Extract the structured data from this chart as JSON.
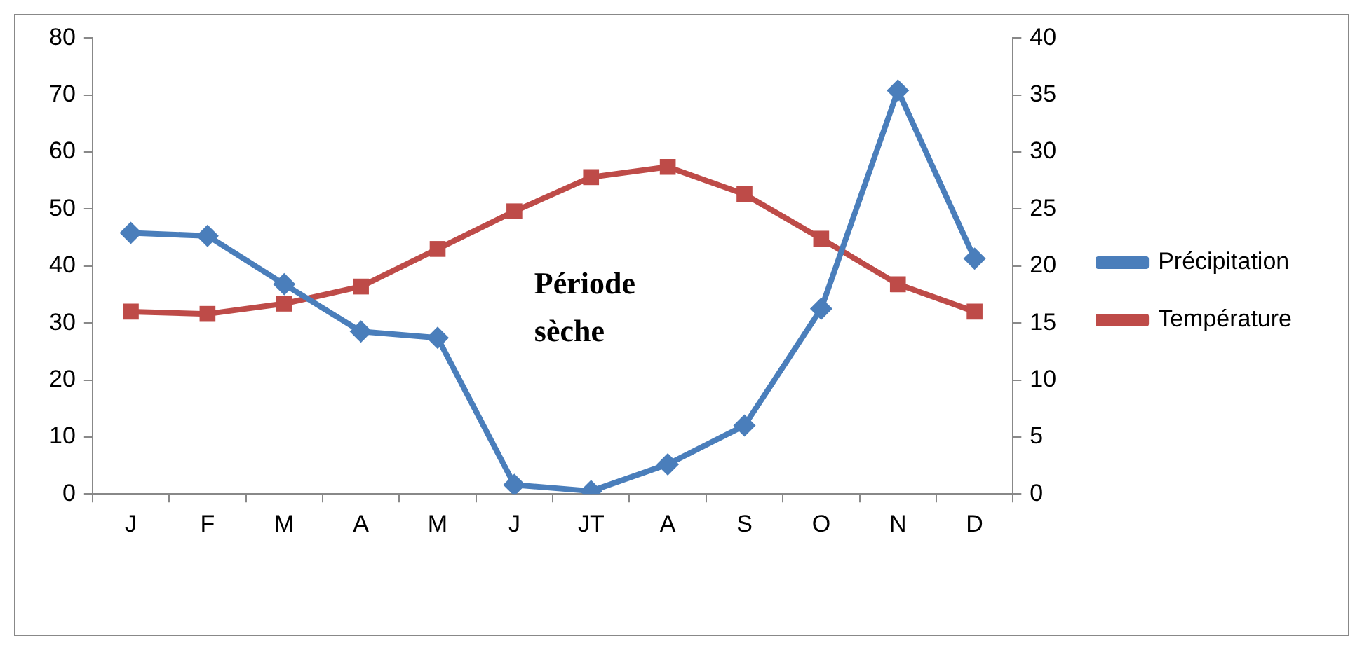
{
  "chart_data": {
    "type": "line",
    "categories": [
      "J",
      "F",
      "M",
      "A",
      "M",
      "J",
      "JT",
      "A",
      "S",
      "O",
      "N",
      "D"
    ],
    "series": [
      {
        "name": "Précipitation",
        "color": "#4a7ebb",
        "marker": "diamond",
        "values": [
          45.8,
          45.3,
          36.8,
          28.5,
          27.4,
          1.6,
          0.5,
          5.2,
          12.0,
          32.5,
          70.8,
          41.3
        ]
      },
      {
        "name": "Température",
        "color": "#be4b48",
        "marker": "square",
        "axis": "y2",
        "values": [
          16.0,
          15.8,
          16.7,
          18.2,
          21.5,
          24.8,
          27.8,
          28.7,
          26.3,
          22.4,
          18.4,
          16.0
        ]
      }
    ],
    "ylim": [
      0,
      80
    ],
    "yticks": [
      0,
      10,
      20,
      30,
      40,
      50,
      60,
      70,
      80
    ],
    "y2lim": [
      0,
      40
    ],
    "y2ticks": [
      0,
      5,
      10,
      15,
      20,
      25,
      30,
      35,
      40
    ],
    "grid": false,
    "legend": "right",
    "line_style": "solid",
    "annotations": [
      "Période sèche"
    ]
  }
}
